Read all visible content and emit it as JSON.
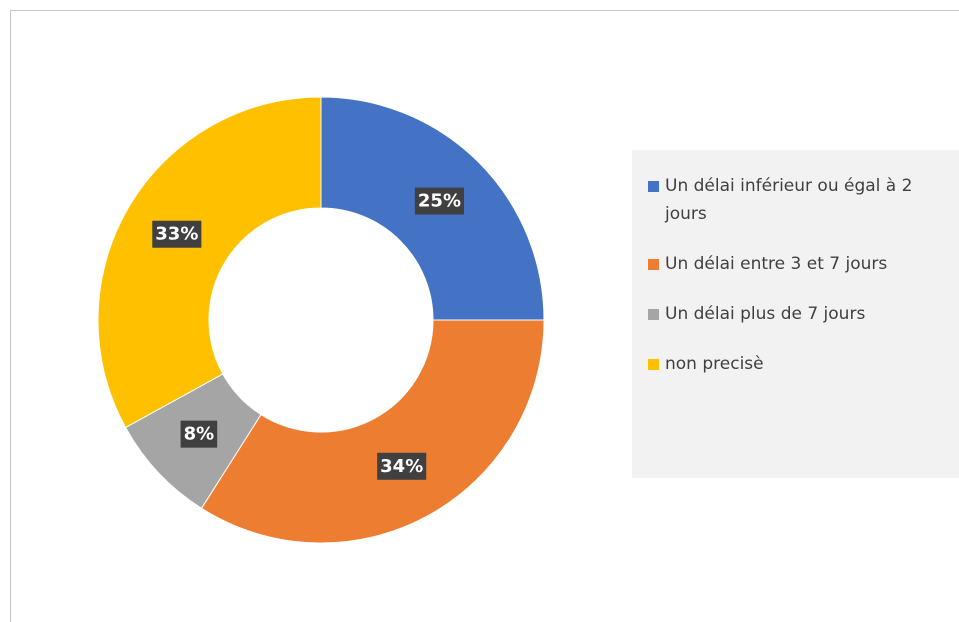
{
  "chart_data": {
    "type": "donut",
    "categories": [
      "Un délai inférieur ou égal à 2 jours",
      "Un délai entre 3 et 7 jours",
      "Un délai plus de 7 jours",
      "non precisè"
    ],
    "values": [
      25,
      34,
      8,
      33
    ],
    "value_labels": [
      "25%",
      "34%",
      "8%",
      "33%"
    ],
    "colors": [
      "#4472c4",
      "#ed7d31",
      "#a5a5a5",
      "#ffc000"
    ],
    "legend": "right"
  }
}
